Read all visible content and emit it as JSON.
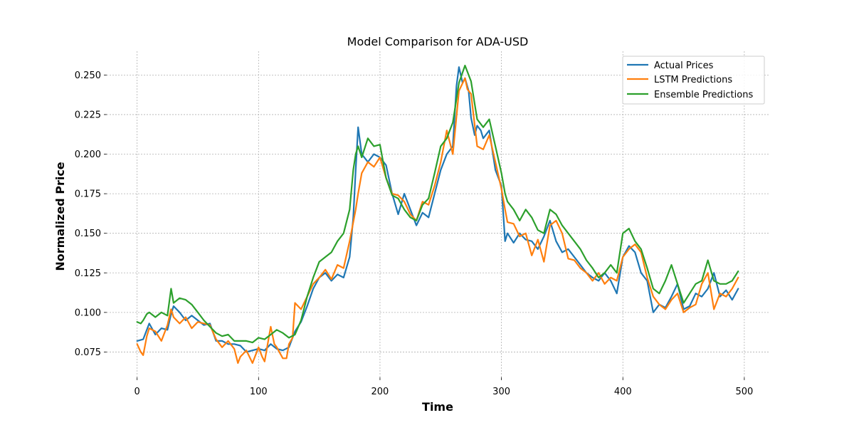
{
  "chart_data": {
    "type": "line",
    "title": "Model Comparison for ADA-USD",
    "xlabel": "Time",
    "ylabel": "Normalized Price",
    "xlim": [
      -25,
      520
    ],
    "ylim": [
      0.059,
      0.265
    ],
    "xticks": [
      0,
      100,
      200,
      300,
      400,
      500
    ],
    "yticks": [
      0.075,
      0.1,
      0.125,
      0.15,
      0.175,
      0.2,
      0.225,
      0.25
    ],
    "grid": true,
    "legend_position": "top-right",
    "series": [
      {
        "name": "Actual Prices",
        "color": "#1f77b4",
        "x": [
          0,
          5,
          10,
          15,
          20,
          25,
          28,
          30,
          35,
          40,
          45,
          50,
          55,
          60,
          65,
          70,
          75,
          80,
          85,
          90,
          95,
          100,
          105,
          110,
          115,
          120,
          125,
          130,
          135,
          140,
          145,
          150,
          155,
          160,
          165,
          170,
          175,
          178,
          180,
          182,
          185,
          190,
          195,
          200,
          205,
          210,
          215,
          220,
          225,
          230,
          235,
          240,
          245,
          250,
          255,
          260,
          263,
          265,
          268,
          270,
          273,
          275,
          278,
          280,
          283,
          285,
          290,
          295,
          300,
          303,
          305,
          310,
          315,
          320,
          325,
          330,
          335,
          340,
          345,
          350,
          355,
          360,
          365,
          370,
          375,
          380,
          385,
          390,
          395,
          400,
          405,
          410,
          415,
          420,
          425,
          430,
          435,
          440,
          445,
          450,
          455,
          460,
          465,
          470,
          475,
          480,
          485,
          490,
          495
        ],
        "y": [
          0.082,
          0.083,
          0.093,
          0.086,
          0.09,
          0.089,
          0.099,
          0.104,
          0.1,
          0.095,
          0.098,
          0.095,
          0.092,
          0.093,
          0.082,
          0.082,
          0.08,
          0.08,
          0.079,
          0.075,
          0.076,
          0.077,
          0.076,
          0.08,
          0.077,
          0.076,
          0.078,
          0.088,
          0.094,
          0.104,
          0.115,
          0.122,
          0.125,
          0.12,
          0.124,
          0.122,
          0.135,
          0.16,
          0.19,
          0.217,
          0.2,
          0.195,
          0.2,
          0.198,
          0.193,
          0.175,
          0.162,
          0.175,
          0.165,
          0.155,
          0.163,
          0.16,
          0.175,
          0.19,
          0.2,
          0.205,
          0.243,
          0.255,
          0.245,
          0.248,
          0.24,
          0.223,
          0.212,
          0.218,
          0.215,
          0.21,
          0.215,
          0.19,
          0.18,
          0.145,
          0.15,
          0.144,
          0.15,
          0.146,
          0.145,
          0.14,
          0.148,
          0.158,
          0.145,
          0.138,
          0.14,
          0.135,
          0.13,
          0.125,
          0.122,
          0.12,
          0.125,
          0.12,
          0.112,
          0.135,
          0.142,
          0.138,
          0.125,
          0.12,
          0.1,
          0.105,
          0.103,
          0.11,
          0.118,
          0.102,
          0.104,
          0.112,
          0.11,
          0.115,
          0.125,
          0.11,
          0.114,
          0.108,
          0.115
        ]
      },
      {
        "name": "LSTM Predictions",
        "color": "#ff7f0e",
        "x": [
          0,
          3,
          5,
          8,
          10,
          15,
          20,
          25,
          28,
          30,
          35,
          40,
          45,
          50,
          55,
          60,
          65,
          70,
          75,
          80,
          83,
          85,
          90,
          95,
          100,
          103,
          105,
          110,
          113,
          115,
          120,
          123,
          125,
          128,
          130,
          135,
          140,
          145,
          150,
          155,
          160,
          165,
          170,
          175,
          180,
          182,
          185,
          190,
          195,
          200,
          205,
          210,
          215,
          220,
          225,
          230,
          235,
          240,
          245,
          250,
          255,
          260,
          265,
          270,
          272,
          275,
          280,
          285,
          290,
          295,
          300,
          303,
          305,
          310,
          315,
          320,
          325,
          330,
          335,
          340,
          345,
          350,
          355,
          360,
          365,
          370,
          375,
          380,
          385,
          390,
          395,
          400,
          405,
          410,
          415,
          420,
          425,
          430,
          435,
          440,
          445,
          450,
          455,
          460,
          465,
          470,
          475,
          480,
          485,
          490,
          495
        ],
        "y": [
          0.08,
          0.075,
          0.073,
          0.085,
          0.09,
          0.088,
          0.082,
          0.092,
          0.102,
          0.097,
          0.093,
          0.097,
          0.09,
          0.094,
          0.093,
          0.092,
          0.083,
          0.078,
          0.082,
          0.077,
          0.068,
          0.072,
          0.076,
          0.068,
          0.078,
          0.072,
          0.069,
          0.091,
          0.08,
          0.078,
          0.071,
          0.071,
          0.08,
          0.084,
          0.106,
          0.102,
          0.11,
          0.118,
          0.122,
          0.127,
          0.121,
          0.13,
          0.128,
          0.145,
          0.165,
          0.175,
          0.188,
          0.195,
          0.192,
          0.198,
          0.185,
          0.175,
          0.174,
          0.17,
          0.162,
          0.158,
          0.17,
          0.168,
          0.18,
          0.195,
          0.215,
          0.2,
          0.24,
          0.248,
          0.241,
          0.238,
          0.205,
          0.203,
          0.212,
          0.195,
          0.178,
          0.165,
          0.157,
          0.156,
          0.148,
          0.15,
          0.136,
          0.146,
          0.132,
          0.155,
          0.158,
          0.15,
          0.134,
          0.133,
          0.128,
          0.125,
          0.12,
          0.125,
          0.118,
          0.122,
          0.12,
          0.135,
          0.14,
          0.143,
          0.138,
          0.122,
          0.11,
          0.105,
          0.102,
          0.108,
          0.112,
          0.1,
          0.103,
          0.105,
          0.118,
          0.125,
          0.102,
          0.112,
          0.11,
          0.115,
          0.122
        ]
      },
      {
        "name": "Ensemble Predictions",
        "color": "#2ca02c",
        "x": [
          0,
          3,
          5,
          8,
          10,
          15,
          20,
          25,
          28,
          30,
          35,
          40,
          45,
          50,
          55,
          60,
          65,
          70,
          75,
          80,
          85,
          90,
          95,
          100,
          105,
          110,
          115,
          120,
          125,
          130,
          135,
          140,
          145,
          150,
          155,
          160,
          165,
          170,
          175,
          178,
          180,
          182,
          185,
          190,
          195,
          200,
          205,
          210,
          215,
          220,
          225,
          230,
          235,
          240,
          245,
          250,
          255,
          260,
          265,
          270,
          272,
          275,
          280,
          285,
          290,
          295,
          300,
          303,
          305,
          310,
          315,
          320,
          325,
          330,
          335,
          340,
          345,
          350,
          355,
          360,
          365,
          370,
          375,
          380,
          385,
          390,
          395,
          400,
          405,
          410,
          415,
          420,
          425,
          430,
          435,
          440,
          445,
          450,
          455,
          460,
          465,
          470,
          475,
          480,
          485,
          490,
          495
        ],
        "y": [
          0.094,
          0.093,
          0.095,
          0.099,
          0.1,
          0.097,
          0.1,
          0.098,
          0.115,
          0.106,
          0.109,
          0.108,
          0.105,
          0.1,
          0.095,
          0.091,
          0.087,
          0.085,
          0.086,
          0.082,
          0.082,
          0.082,
          0.081,
          0.084,
          0.083,
          0.086,
          0.089,
          0.087,
          0.084,
          0.086,
          0.095,
          0.11,
          0.122,
          0.132,
          0.135,
          0.138,
          0.145,
          0.15,
          0.165,
          0.19,
          0.2,
          0.205,
          0.198,
          0.21,
          0.205,
          0.206,
          0.185,
          0.174,
          0.172,
          0.165,
          0.16,
          0.158,
          0.168,
          0.172,
          0.188,
          0.205,
          0.21,
          0.22,
          0.245,
          0.256,
          0.252,
          0.246,
          0.222,
          0.217,
          0.222,
          0.205,
          0.188,
          0.175,
          0.17,
          0.165,
          0.158,
          0.165,
          0.16,
          0.152,
          0.15,
          0.165,
          0.162,
          0.155,
          0.15,
          0.145,
          0.14,
          0.133,
          0.128,
          0.122,
          0.125,
          0.13,
          0.125,
          0.15,
          0.153,
          0.145,
          0.14,
          0.128,
          0.115,
          0.112,
          0.12,
          0.13,
          0.118,
          0.106,
          0.112,
          0.118,
          0.12,
          0.133,
          0.12,
          0.118,
          0.118,
          0.12,
          0.126
        ]
      }
    ]
  }
}
